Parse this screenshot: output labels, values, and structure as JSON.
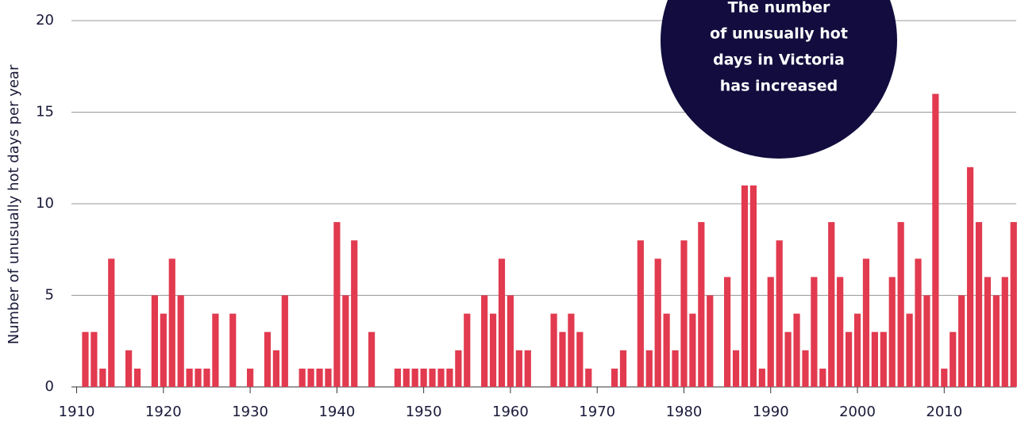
{
  "chart_data": {
    "type": "bar",
    "y_label": "Number of unusually hot days per year",
    "annotation": [
      "The number",
      "of unusually hot",
      "days in Victoria",
      "has increased"
    ],
    "color": "#e23a4f",
    "x": [
      1911,
      1912,
      1913,
      1914,
      1915,
      1916,
      1917,
      1918,
      1919,
      1920,
      1921,
      1922,
      1923,
      1924,
      1925,
      1926,
      1927,
      1928,
      1929,
      1930,
      1931,
      1932,
      1933,
      1934,
      1935,
      1936,
      1937,
      1938,
      1939,
      1940,
      1941,
      1942,
      1943,
      1944,
      1945,
      1946,
      1947,
      1948,
      1949,
      1950,
      1951,
      1952,
      1953,
      1954,
      1955,
      1956,
      1957,
      1958,
      1959,
      1960,
      1961,
      1962,
      1963,
      1964,
      1965,
      1966,
      1967,
      1968,
      1969,
      1970,
      1971,
      1972,
      1973,
      1974,
      1975,
      1976,
      1977,
      1978,
      1979,
      1980,
      1981,
      1982,
      1983,
      1984,
      1985,
      1986,
      1987,
      1988,
      1989,
      1990,
      1991,
      1992,
      1993,
      1994,
      1995,
      1996,
      1997,
      1998,
      1999,
      2000,
      2001,
      2002,
      2003,
      2004,
      2005,
      2006,
      2007,
      2008,
      2009,
      2010,
      2011,
      2012,
      2013,
      2014,
      2015,
      2016,
      2017,
      2018
    ],
    "values": [
      3,
      3,
      1,
      7,
      0,
      2,
      1,
      0,
      5,
      4,
      7,
      5,
      1,
      1,
      1,
      4,
      0,
      4,
      0,
      1,
      0,
      3,
      2,
      5,
      0,
      1,
      1,
      1,
      1,
      9,
      5,
      8,
      0,
      3,
      0,
      0,
      1,
      1,
      1,
      1,
      1,
      1,
      1,
      2,
      4,
      0,
      5,
      4,
      7,
      5,
      2,
      2,
      0,
      0,
      4,
      3,
      4,
      3,
      1,
      0,
      0,
      1,
      2,
      0,
      8,
      2,
      7,
      4,
      2,
      8,
      4,
      9,
      5,
      0,
      6,
      2,
      11,
      11,
      1,
      6,
      8,
      3,
      4,
      2,
      6,
      1,
      9,
      6,
      3,
      4,
      7,
      3,
      3,
      6,
      9,
      4,
      7,
      5,
      16,
      1,
      3,
      5,
      12,
      9,
      6,
      5,
      6,
      9
    ],
    "xlim": [
      1909.4,
      2018.3
    ],
    "xticks": [
      1910,
      1920,
      1930,
      1940,
      1950,
      1960,
      1970,
      1980,
      1990,
      2000,
      2010
    ],
    "ylim": [
      0,
      20
    ],
    "yticks": [
      0,
      5,
      10,
      15,
      20
    ],
    "grid": true
  }
}
